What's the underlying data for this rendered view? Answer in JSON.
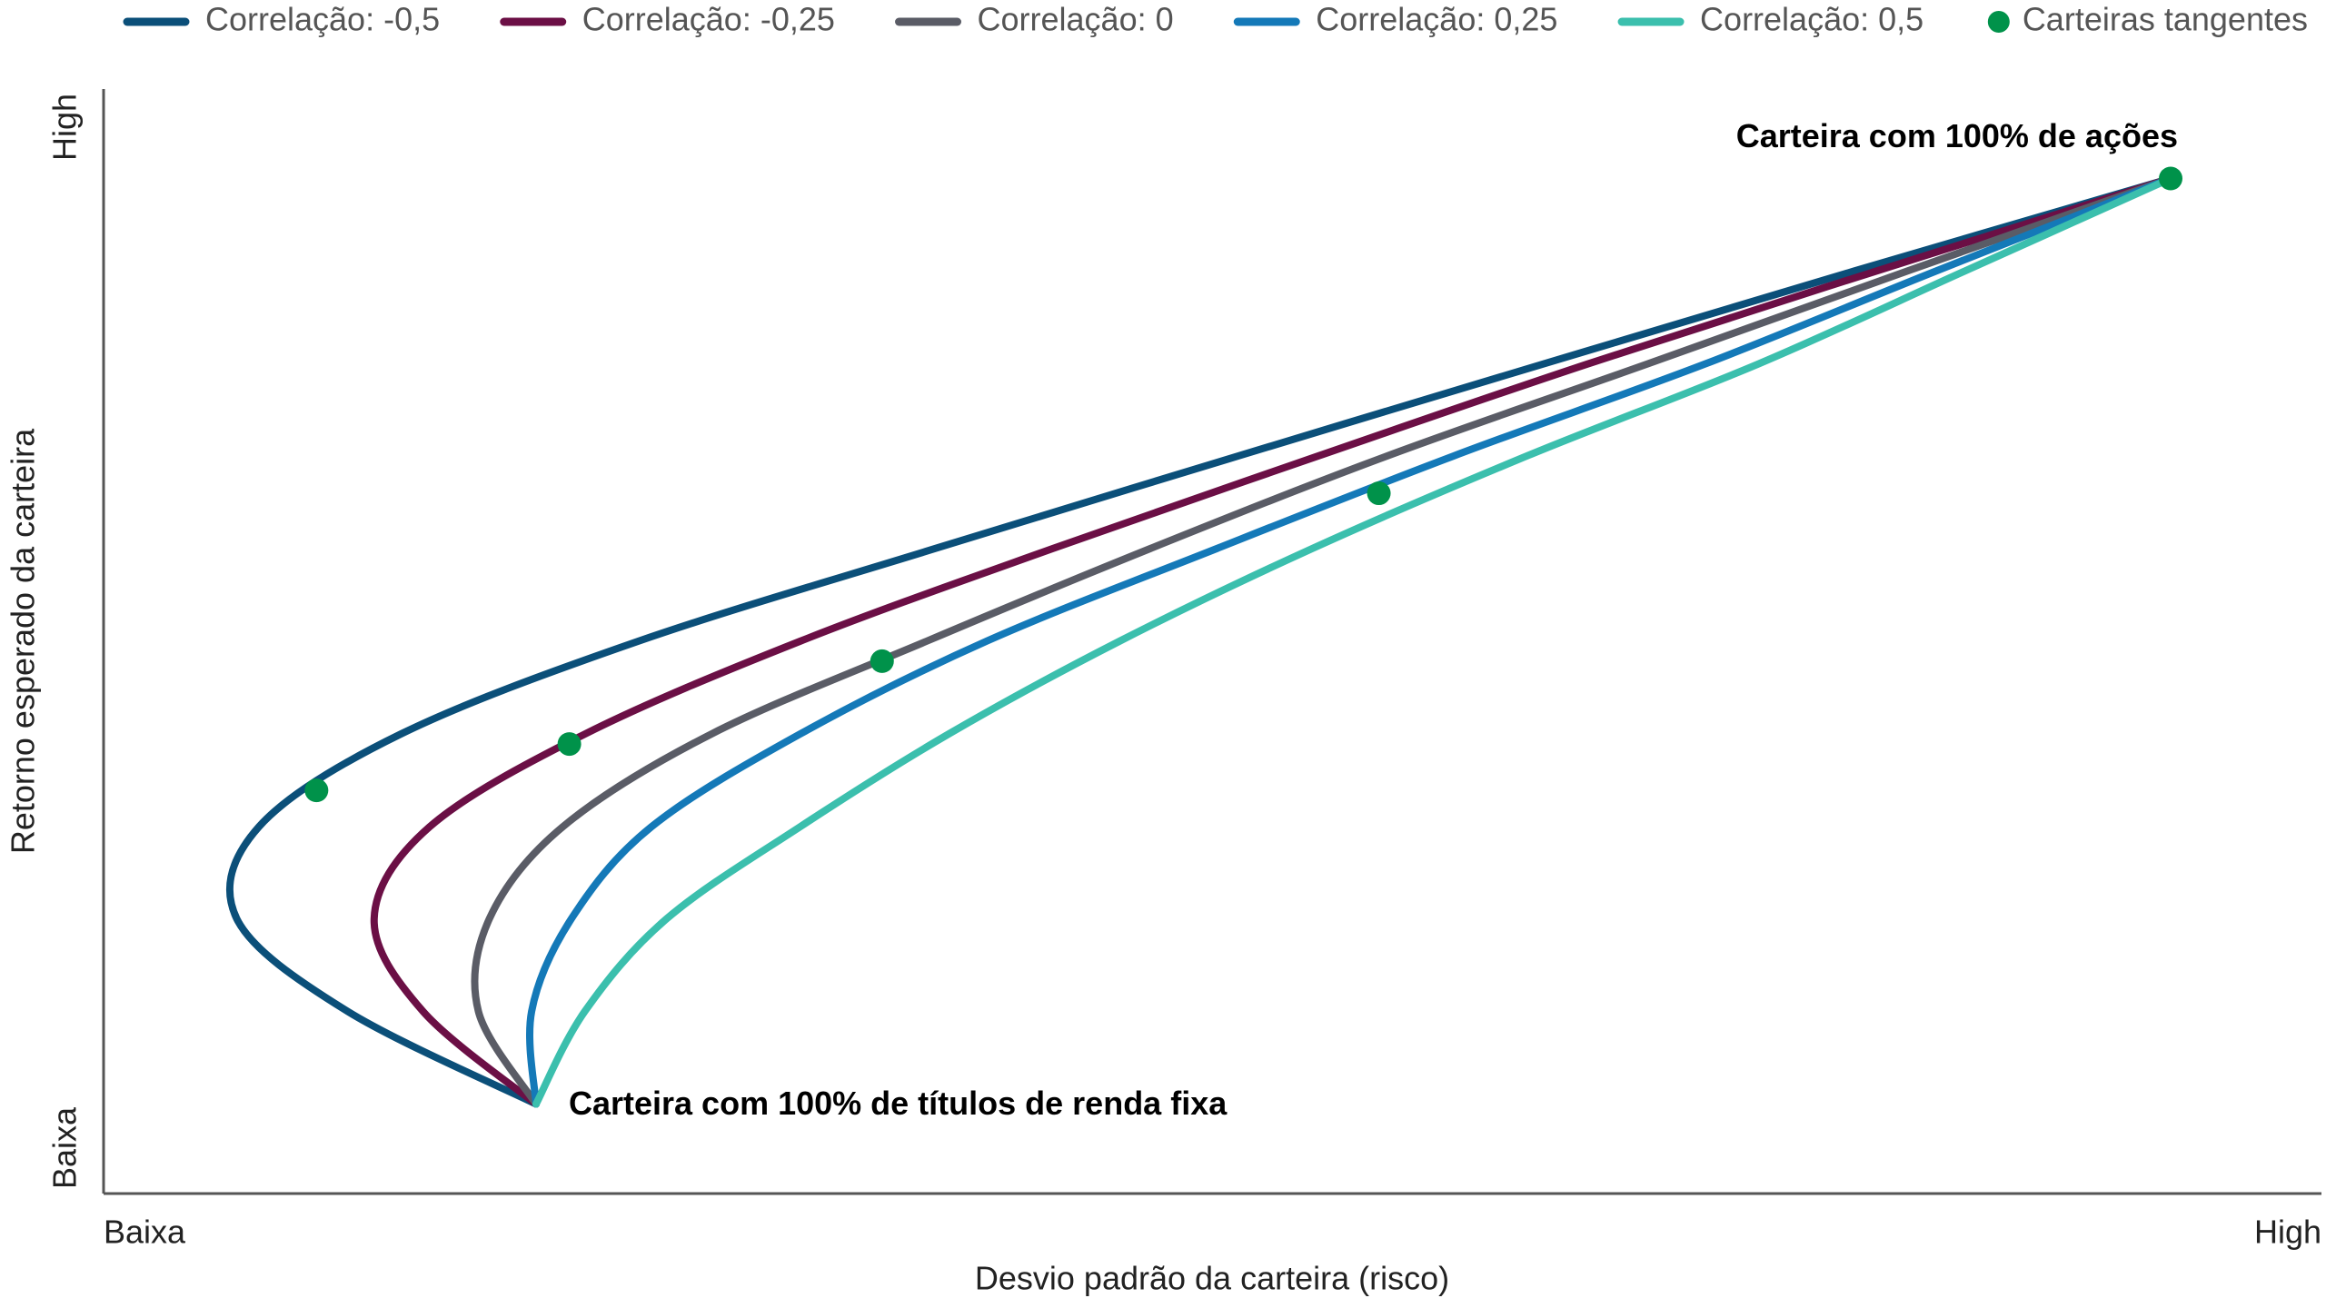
{
  "chart_data": {
    "type": "line",
    "x_label": "Desvio padrão da carteira (risco)",
    "y_label": "Retorno esperado da carteira",
    "xlim": [
      0,
      100
    ],
    "ylim": [
      0,
      100
    ],
    "xticks": [
      {
        "value": 0,
        "label": "Baixa"
      },
      {
        "value": 100,
        "label": "High"
      }
    ],
    "yticks": [
      {
        "value": 0,
        "label": "Baixa"
      },
      {
        "value": 100,
        "label": "High"
      }
    ],
    "legend": "top",
    "series": [
      {
        "name": "Correlação: -0,5",
        "color": "#0b4f79",
        "x": [
          19.5,
          11.0,
          6.0,
          7.0,
          13.4,
          24.1,
          37.5,
          51.2,
          64.9,
          78.9,
          93.2
        ],
        "values": [
          8.1,
          16.5,
          24.9,
          33.2,
          41.6,
          50.0,
          58.4,
          66.8,
          75.1,
          83.5,
          91.9
        ]
      },
      {
        "name": "Correlação: -0,25",
        "color": "#6b0f45",
        "x": [
          19.5,
          14.4,
          12.2,
          14.7,
          21.7,
          31.4,
          42.8,
          54.8,
          66.9,
          79.9,
          93.2
        ],
        "values": [
          8.1,
          16.5,
          24.9,
          33.2,
          41.6,
          50.0,
          58.4,
          66.8,
          75.1,
          83.5,
          91.9
        ]
      },
      {
        "name": "Correlação: 0",
        "color": "#5a5c66",
        "x": [
          19.5,
          16.9,
          17.4,
          20.7,
          27.4,
          37.1,
          47.2,
          57.9,
          69.6,
          81.3,
          93.2
        ],
        "values": [
          8.1,
          16.5,
          24.9,
          33.2,
          41.6,
          50.0,
          58.4,
          66.8,
          75.1,
          83.5,
          91.9
        ]
      },
      {
        "name": "Correlação: 0,25",
        "color": "#1479b8",
        "x": [
          19.5,
          19.3,
          21.1,
          24.7,
          31.4,
          39.8,
          50.2,
          60.9,
          72.2,
          82.6,
          93.2
        ],
        "values": [
          8.1,
          16.5,
          24.9,
          33.2,
          41.6,
          50.0,
          58.4,
          66.8,
          75.1,
          83.5,
          91.9
        ]
      },
      {
        "name": "Correlação: 0,5",
        "color": "#3bbfad",
        "x": [
          19.5,
          21.7,
          25.4,
          31.4,
          38.1,
          45.8,
          54.5,
          64.2,
          74.6,
          83.9,
          93.2
        ],
        "values": [
          8.1,
          16.5,
          24.9,
          33.2,
          41.6,
          50.0,
          58.4,
          66.8,
          75.1,
          83.5,
          91.9
        ]
      },
      {
        "name": "Carteiras tangentes",
        "color": "#00924a",
        "style": "markers",
        "x": [
          9.6,
          21.0,
          35.1,
          57.5,
          93.2
        ],
        "values": [
          36.5,
          40.7,
          48.2,
          63.4,
          91.9
        ]
      }
    ],
    "annotations": [
      "Carteira com 100% de ações",
      "Carteira com 100% de títulos de renda fixa"
    ]
  }
}
